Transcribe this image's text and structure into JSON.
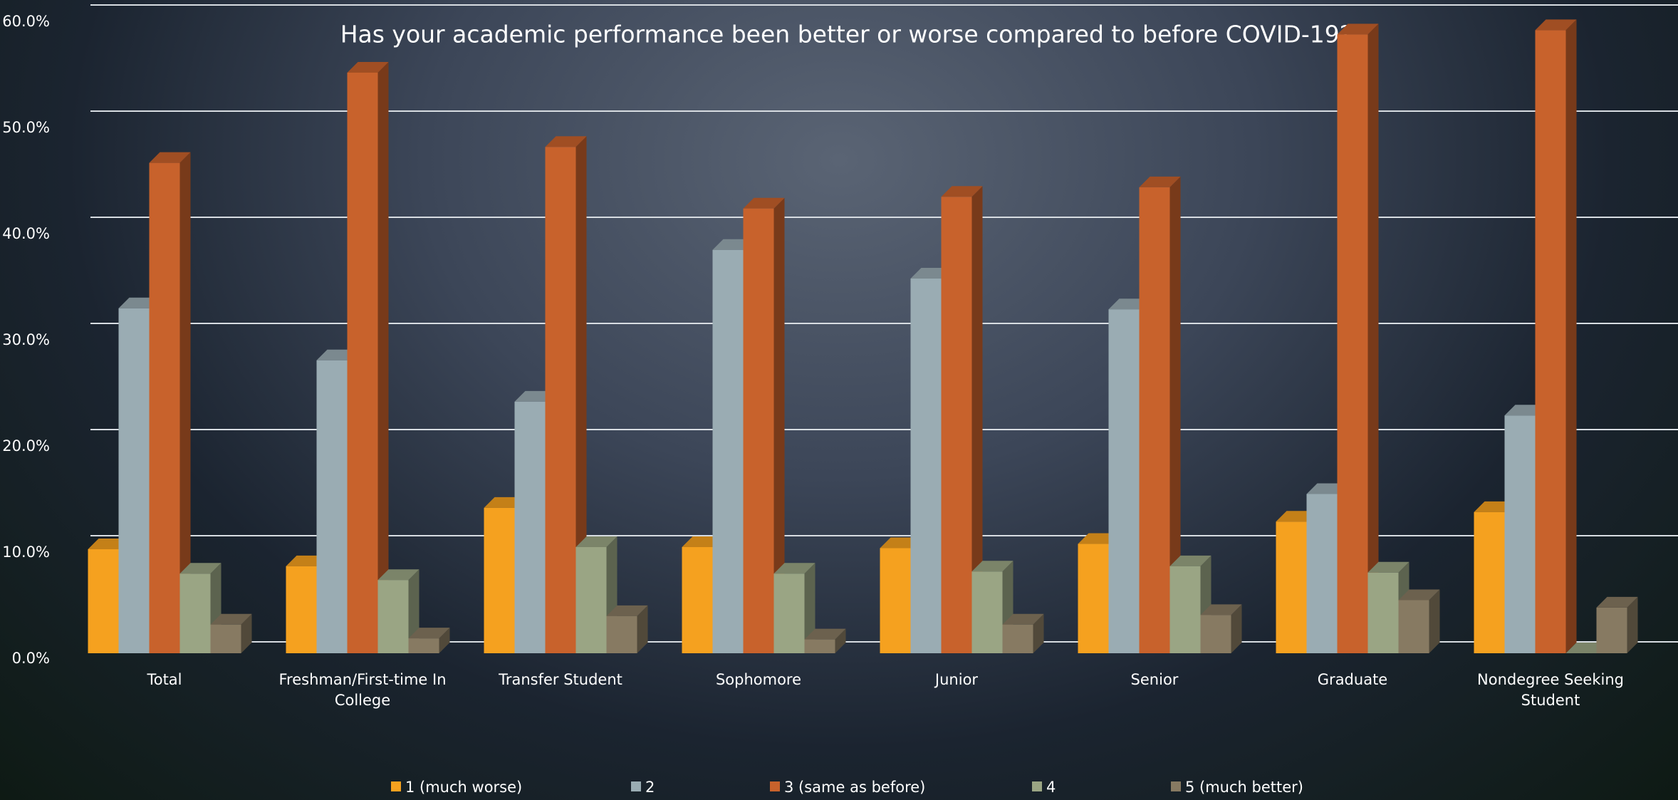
{
  "chart_data": {
    "type": "bar3d",
    "title": "Has your academic performance been better or worse compared to before COVID-19?",
    "categories": [
      "Total",
      "Freshman/First-time In College",
      "Transfer Student",
      "Sophomore",
      "Junior",
      "Senior",
      "Graduate",
      "Nondegree Seeking Student"
    ],
    "series": [
      {
        "name": "1 (much worse)",
        "color": "#f5a11f",
        "values": [
          9.8,
          8.2,
          13.7,
          10.0,
          9.9,
          10.3,
          12.4,
          13.3
        ]
      },
      {
        "name": "2",
        "color": "#9aacb3",
        "values": [
          32.5,
          27.6,
          23.7,
          38.0,
          35.3,
          32.4,
          15.0,
          22.4
        ]
      },
      {
        "name": "3 (same as before)",
        "color": "#c8622c",
        "values": [
          46.2,
          54.7,
          47.7,
          41.9,
          43.0,
          43.9,
          58.3,
          58.7
        ]
      },
      {
        "name": "4",
        "color": "#9aa584",
        "values": [
          7.5,
          6.9,
          10.0,
          7.5,
          7.7,
          8.2,
          7.6,
          0
        ]
      },
      {
        "name": "5 (much better)",
        "color": "#877a62",
        "values": [
          2.7,
          1.4,
          3.5,
          1.3,
          2.7,
          3.6,
          5.0,
          4.3
        ]
      }
    ],
    "ylim": [
      0,
      60
    ],
    "yticks": [
      {
        "value": 0,
        "label": "0.0%"
      },
      {
        "value": 10,
        "label": "10.0%"
      },
      {
        "value": 20,
        "label": "20.0%"
      },
      {
        "value": 30,
        "label": "30.0%"
      },
      {
        "value": 40,
        "label": "40.0%"
      },
      {
        "value": 50,
        "label": "50.0%"
      },
      {
        "value": 60,
        "label": "60.0%"
      }
    ],
    "grid": true,
    "legend": "bottom"
  }
}
